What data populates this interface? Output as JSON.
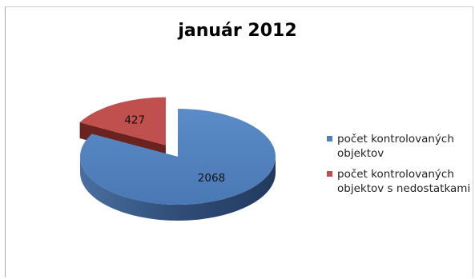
{
  "chart_data": {
    "type": "pie",
    "title": "január 2012",
    "categories": [
      "počet kontrolovaných objektov",
      "počet kontrolovaných objektov s nedostatkami"
    ],
    "values": [
      2068,
      427
    ],
    "data_labels": [
      "2068",
      "427"
    ],
    "colors": [
      "#4f81bd",
      "#c0504d"
    ],
    "legend_position": "right",
    "exploded": "počet kontrolovaných objektov s nedostatkami",
    "style": "3d"
  },
  "legend": {
    "items": [
      {
        "label": "počet kontrolovaných objektov",
        "color": "#4f81bd"
      },
      {
        "label": "počet kontrolovaných objektov s nedostatkami",
        "color": "#c0504d"
      }
    ]
  }
}
